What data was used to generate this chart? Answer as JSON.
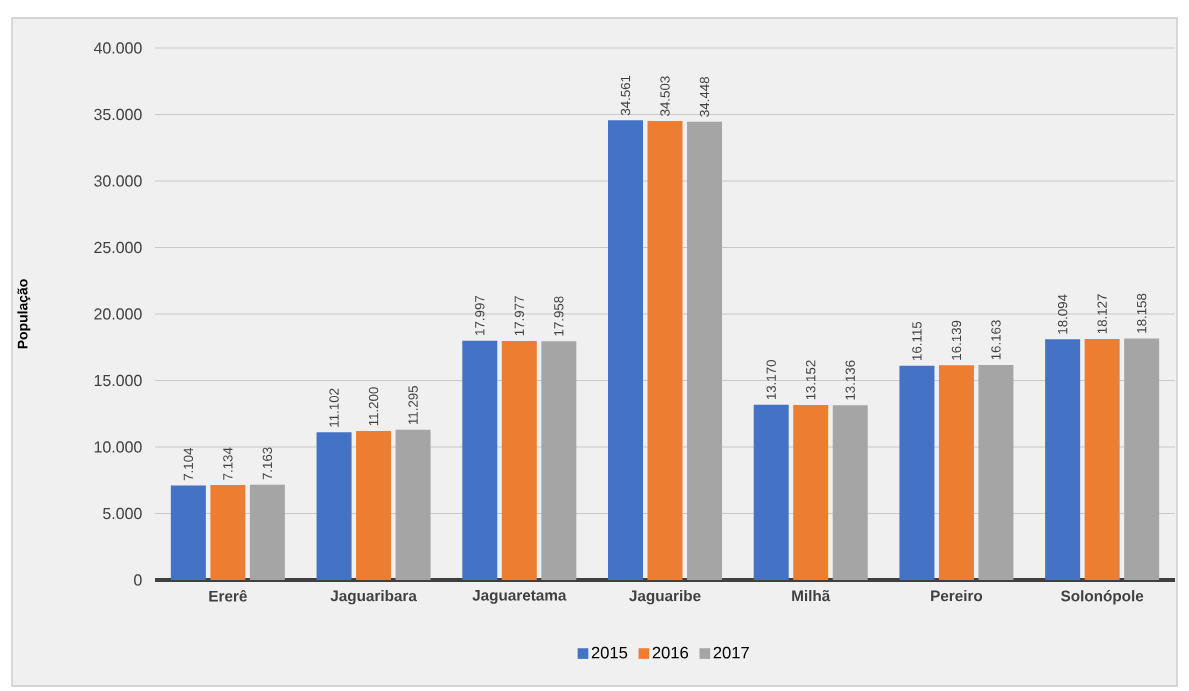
{
  "chart_data": {
    "type": "bar",
    "ylabel": "População",
    "categories": [
      "Ererê",
      "Jaguaribara",
      "Jaguaretama",
      "Jaguaribe",
      "Milhã",
      "Pereiro",
      "Solonópole"
    ],
    "series": [
      {
        "name": "2015",
        "color": "#4472c4",
        "values": [
          7104,
          11102,
          17997,
          34561,
          13170,
          16115,
          18094
        ],
        "value_labels": [
          "7.104",
          "11.102",
          "17.997",
          "34.561",
          "13.170",
          "16.115",
          "18.094"
        ]
      },
      {
        "name": "2016",
        "color": "#ed7d31",
        "values": [
          7134,
          11200,
          17977,
          34503,
          13152,
          16139,
          18127
        ],
        "value_labels": [
          "7.134",
          "11.200",
          "17.977",
          "34.503",
          "13.152",
          "16.139",
          "18.127"
        ]
      },
      {
        "name": "2017",
        "color": "#a5a5a5",
        "values": [
          7163,
          11295,
          17958,
          34448,
          13136,
          16163,
          18158
        ],
        "value_labels": [
          "7.163",
          "11.295",
          "17.958",
          "34.448",
          "13.136",
          "16.163",
          "18.158"
        ]
      }
    ],
    "ylim": [
      0,
      40000
    ],
    "yticks": [
      0,
      {
        "value": 5000,
        "label": "5.000"
      },
      {
        "value": 10000,
        "label": "10.000"
      },
      {
        "value": 15000,
        "label": "15.000"
      },
      {
        "value": 20000,
        "label": "20.000"
      },
      {
        "value": 25000,
        "label": "25.000"
      },
      {
        "value": 30000,
        "label": "30.000"
      },
      {
        "value": 35000,
        "label": "35.000"
      },
      {
        "value": 40000,
        "label": "40.000"
      }
    ],
    "grid": "y",
    "legend": "bottom"
  }
}
